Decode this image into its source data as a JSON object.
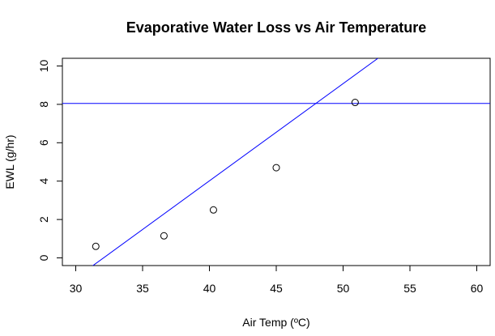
{
  "chart_data": {
    "type": "scatter",
    "title": "Evaporative Water Loss vs Air Temperature",
    "xlabel": "Air Temp (ºC)",
    "ylabel": "EWL (g/hr)",
    "xlim": [
      29,
      61
    ],
    "ylim": [
      -0.4,
      10.4
    ],
    "xticks": [
      30,
      35,
      40,
      45,
      50,
      55,
      60
    ],
    "yticks": [
      0,
      2,
      4,
      6,
      8,
      10
    ],
    "grid": false,
    "points": [
      {
        "x": 31.5,
        "y": 0.6
      },
      {
        "x": 36.6,
        "y": 1.15
      },
      {
        "x": 40.3,
        "y": 2.5
      },
      {
        "x": 45.0,
        "y": 4.7
      },
      {
        "x": 50.9,
        "y": 8.1
      }
    ],
    "regression_line": {
      "intercept": -16.25,
      "slope": 0.5066,
      "color": "#0000ff"
    },
    "horizontal_line": {
      "y": 8.05,
      "color": "#0000ff"
    },
    "point_color": "#000000"
  }
}
